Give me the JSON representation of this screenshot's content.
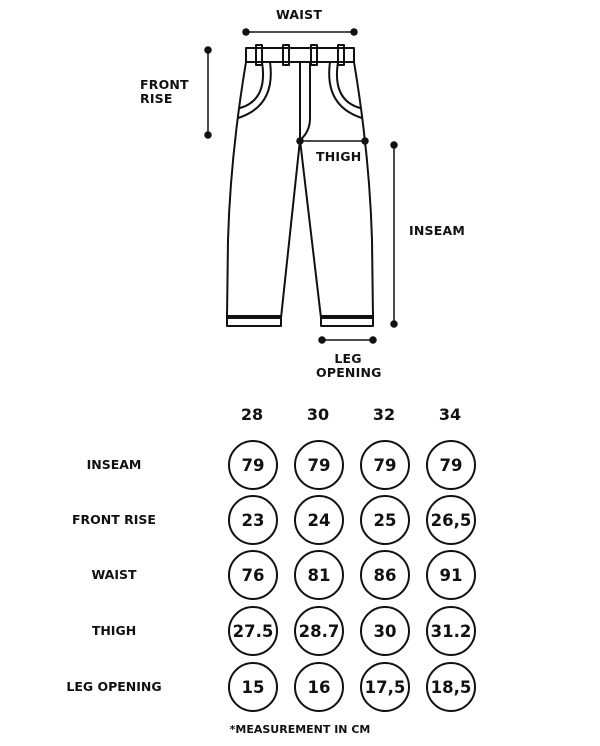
{
  "diagram": {
    "labels": {
      "waist": "WAIST",
      "front_rise": "FRONT\nRISE",
      "thigh": "THIGH",
      "inseam": "INSEAM",
      "leg_opening": "LEG\nOPENING"
    }
  },
  "table": {
    "sizes": [
      "28",
      "30",
      "32",
      "34"
    ],
    "rows": [
      {
        "label": "INSEAM",
        "values": [
          "79",
          "79",
          "79",
          "79"
        ]
      },
      {
        "label": "FRONT RISE",
        "values": [
          "23",
          "24",
          "25",
          "26,5"
        ]
      },
      {
        "label": "WAIST",
        "values": [
          "76",
          "81",
          "86",
          "91"
        ]
      },
      {
        "label": "THIGH",
        "values": [
          "27.5",
          "28.7",
          "30",
          "31.2"
        ]
      },
      {
        "label": "LEG OPENING",
        "values": [
          "15",
          "16",
          "17,5",
          "18,5"
        ]
      }
    ]
  },
  "footnote": "*MEASUREMENT IN CM"
}
